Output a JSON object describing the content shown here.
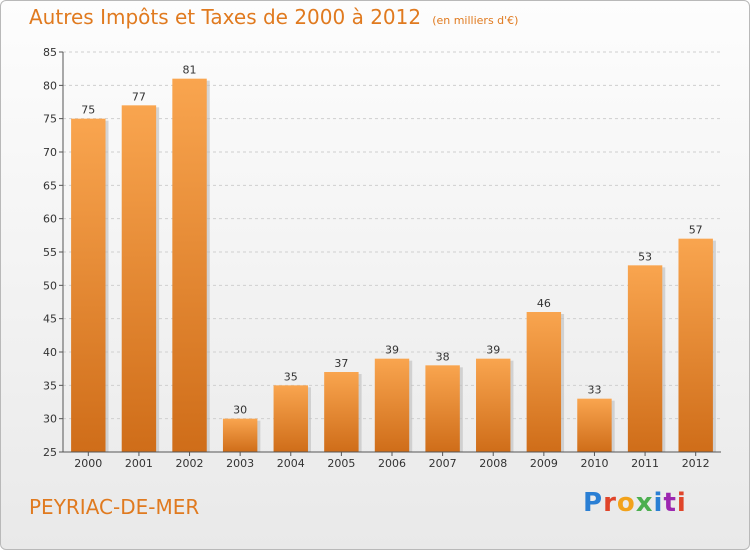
{
  "header": {
    "title": "Autres Impôts et Taxes de 2000 à 2012",
    "subtitle": "(en milliers d'€)"
  },
  "footer": {
    "location": "PEYRIAC-DE-MER",
    "logo_text": "Proxiti"
  },
  "colors": {
    "accent": "#e07a1f",
    "bar_top": "#f9a54f",
    "bar_bottom": "#cf6d19",
    "grid": "#cfcfcf",
    "axis": "#555555"
  },
  "chart_data": {
    "type": "bar",
    "title": "Autres Impôts et Taxes de 2000 à 2012",
    "subtitle": "(en milliers d'€)",
    "categories": [
      "2000",
      "2001",
      "2002",
      "2003",
      "2004",
      "2005",
      "2006",
      "2007",
      "2008",
      "2009",
      "2010",
      "2011",
      "2012"
    ],
    "values": [
      75,
      77,
      81,
      30,
      35,
      37,
      39,
      38,
      39,
      46,
      33,
      53,
      57
    ],
    "ylim": [
      25,
      85
    ],
    "yticks": [
      25,
      30,
      35,
      40,
      45,
      50,
      55,
      60,
      65,
      70,
      75,
      80,
      85
    ],
    "grid": true,
    "data_labels": true,
    "xlabel": "",
    "ylabel": ""
  }
}
